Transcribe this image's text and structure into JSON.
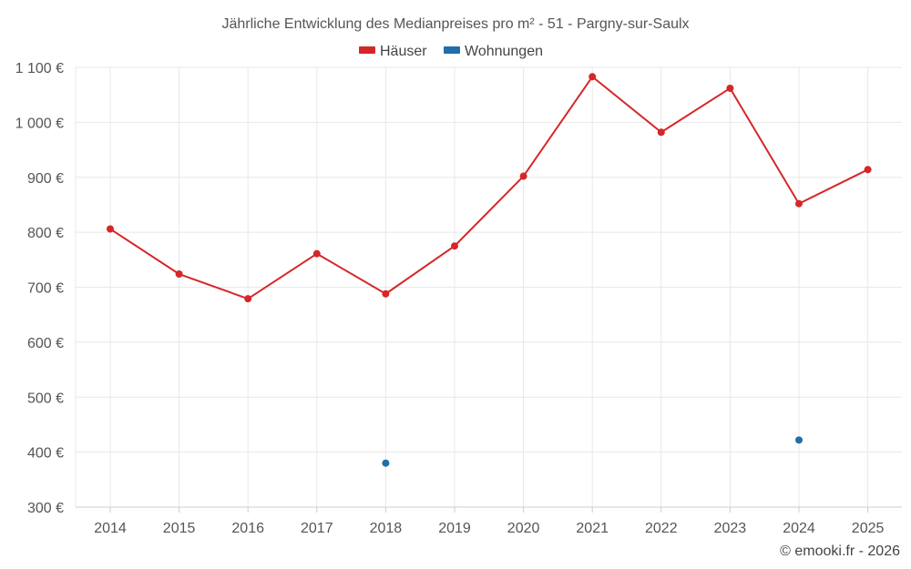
{
  "chart_data": {
    "type": "line",
    "title": "Jährliche Entwicklung des Medianpreises pro m² - 51 - Pargny-sur-Saulx",
    "categories": [
      "2014",
      "2015",
      "2016",
      "2017",
      "2018",
      "2019",
      "2020",
      "2021",
      "2022",
      "2023",
      "2024",
      "2025"
    ],
    "ylim": [
      300,
      1100
    ],
    "yticks": [
      300,
      400,
      500,
      600,
      700,
      800,
      900,
      1000,
      1100
    ],
    "ytick_labels": [
      "300 €",
      "400 €",
      "500 €",
      "600 €",
      "700 €",
      "800 €",
      "900 €",
      "1 000 €",
      "1 100 €"
    ],
    "xlabel": "",
    "ylabel": "",
    "grid": true,
    "legend_position": "top-center",
    "series": [
      {
        "name": "Häuser",
        "color": "#d62728",
        "values": [
          806,
          724,
          679,
          761,
          688,
          775,
          902,
          1083,
          982,
          1062,
          852,
          914
        ]
      },
      {
        "name": "Wohnungen",
        "color": "#1f6fa8",
        "values": [
          null,
          null,
          null,
          null,
          380,
          null,
          null,
          null,
          null,
          null,
          422,
          null
        ]
      }
    ],
    "credit": "© emooki.fr - 2026"
  }
}
